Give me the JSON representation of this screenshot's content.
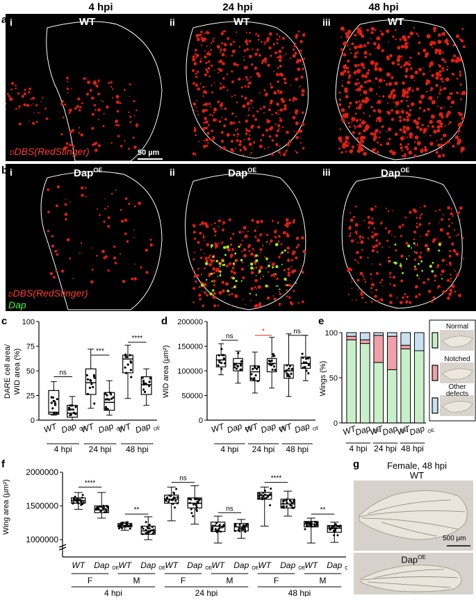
{
  "column_headers": [
    "4 hpi",
    "24 hpi",
    "48 hpi"
  ],
  "panel_letters": {
    "a": "a",
    "b": "b",
    "c": "c",
    "d": "d",
    "e": "e",
    "f": "f",
    "g": "g"
  },
  "roman": [
    "i",
    "ii",
    "iii"
  ],
  "row_a": {
    "genotype": "WT",
    "reporter": "DBS(RedStinger)",
    "reporter_sub": "D",
    "scale": "50 µm"
  },
  "row_b": {
    "genotype": "Dap",
    "genotype_sup": "OE",
    "reporter": "DBS(RedStinger)",
    "reporter_sub": "D",
    "second_label": "Dap"
  },
  "colors": {
    "red": "#ff2a1a",
    "green": "#41ff2a",
    "normal": "#c8f0c8",
    "notched": "#f0a0a8",
    "other": "#c8e0f0"
  },
  "chart_data": [
    {
      "type": "box",
      "panel": "c",
      "ylabel_lines": [
        "DARE cell area/",
        "WID area (%)"
      ],
      "ylim": [
        0,
        100
      ],
      "yticks": [
        "0",
        "25",
        "50",
        "75",
        "100"
      ],
      "categories": [
        "WT",
        "Dap",
        "WT",
        "Dap",
        "WT",
        "Dap"
      ],
      "sups": [
        "",
        "OE",
        "",
        "OE",
        "",
        "OE"
      ],
      "groups": [
        "4 hpi",
        "24 hpi",
        "48 hpi"
      ],
      "boxes": [
        {
          "min": 5,
          "q1": 6,
          "median": 8,
          "q3": 30,
          "max": 39
        },
        {
          "min": 0,
          "q1": 3,
          "median": 7,
          "q3": 15,
          "max": 24
        },
        {
          "min": 12,
          "q1": 26,
          "median": 38,
          "q3": 52,
          "max": 72
        },
        {
          "min": 5,
          "q1": 10,
          "median": 18,
          "q3": 28,
          "max": 40
        },
        {
          "min": 22,
          "q1": 48,
          "median": 62,
          "q3": 66,
          "max": 76
        },
        {
          "min": 15,
          "q1": 26,
          "median": 36,
          "q3": 44,
          "max": 52
        }
      ],
      "significance": [
        {
          "pair": [
            0,
            1
          ],
          "label": "ns",
          "y": 44
        },
        {
          "pair": [
            2,
            3
          ],
          "label": "***",
          "y": 66
        },
        {
          "pair": [
            4,
            5
          ],
          "label": "****",
          "y": 79
        }
      ]
    },
    {
      "type": "box",
      "panel": "d",
      "ylabel": "WID area (µm²)",
      "ylim": [
        0,
        200000
      ],
      "yticks": [
        "0",
        "50000",
        "100000",
        "150000",
        "200000"
      ],
      "categories": [
        "WT",
        "Dap",
        "WT",
        "Dap",
        "WT",
        "Dap"
      ],
      "sups": [
        "",
        "OE",
        "",
        "OE",
        "",
        "OE"
      ],
      "groups": [
        "4 hpi",
        "24 hpi",
        "48 hpi"
      ],
      "boxes": [
        {
          "min": 92000,
          "q1": 108000,
          "median": 122000,
          "q3": 132000,
          "max": 155000
        },
        {
          "min": 75000,
          "q1": 100000,
          "median": 115000,
          "q3": 125000,
          "max": 140000
        },
        {
          "min": 55000,
          "q1": 80000,
          "median": 98000,
          "q3": 110000,
          "max": 138000
        },
        {
          "min": 65000,
          "q1": 98000,
          "median": 115000,
          "q3": 125000,
          "max": 168000
        },
        {
          "min": 48000,
          "q1": 85000,
          "median": 100000,
          "q3": 112000,
          "max": 175000
        },
        {
          "min": 80000,
          "q1": 105000,
          "median": 115000,
          "q3": 128000,
          "max": 172000
        }
      ],
      "significance": [
        {
          "pair": [
            0,
            1
          ],
          "label": "ns",
          "y": 162000,
          "color": "#000"
        },
        {
          "pair": [
            2,
            3
          ],
          "label": "*",
          "y": 172000,
          "color": "#e02020"
        },
        {
          "pair": [
            4,
            5
          ],
          "label": "ns",
          "y": 172000,
          "color": "#000"
        }
      ]
    },
    {
      "type": "stacked-bar",
      "panel": "e",
      "ylabel": "Wings (%)",
      "ylim": [
        0,
        100
      ],
      "yticks": [
        "0",
        "50",
        "100"
      ],
      "categories": [
        "WT",
        "Dap",
        "WT",
        "Dap",
        "WT",
        "Dap"
      ],
      "sups": [
        "",
        "OE",
        "",
        "OE",
        "",
        "OE"
      ],
      "groups": [
        "4 hpi",
        "24 hpi",
        "48 hpi"
      ],
      "series": [
        {
          "name": "Normal",
          "values": [
            92,
            88,
            67,
            59,
            82,
            80
          ]
        },
        {
          "name": "Notched",
          "values": [
            4,
            4,
            30,
            37,
            4,
            0
          ]
        },
        {
          "name": "Other defects",
          "values": [
            4,
            8,
            3,
            4,
            14,
            20
          ]
        }
      ],
      "legend": [
        "Normal",
        "Notched",
        "Other defects"
      ]
    },
    {
      "type": "box",
      "panel": "f",
      "ylabel": "Wing area (µm²)",
      "ylim": [
        850000,
        2000000
      ],
      "yticks": [
        "1000000",
        "1500000",
        "2000000"
      ],
      "categories": [
        "WT",
        "Dap",
        "WT",
        "Dap",
        "WT",
        "Dap",
        "WT",
        "Dap",
        "WT",
        "Dap",
        "WT",
        "Dap"
      ],
      "sups": [
        "",
        "OE",
        "",
        "OE",
        "",
        "OE",
        "",
        "OE",
        "",
        "OE",
        "",
        "OE"
      ],
      "sex": [
        "F",
        "M",
        "F",
        "M",
        "F",
        "M"
      ],
      "groups": [
        "4 hpi",
        "24 hpi",
        "48 hpi"
      ],
      "boxes": [
        {
          "min": 1450000,
          "q1": 1540000,
          "median": 1580000,
          "q3": 1620000,
          "max": 1700000
        },
        {
          "min": 1320000,
          "q1": 1400000,
          "median": 1440000,
          "q3": 1500000,
          "max": 1700000
        },
        {
          "min": 1140000,
          "q1": 1190000,
          "median": 1210000,
          "q3": 1240000,
          "max": 1260000
        },
        {
          "min": 1000000,
          "q1": 1080000,
          "median": 1130000,
          "q3": 1200000,
          "max": 1340000
        },
        {
          "min": 1280000,
          "q1": 1540000,
          "median": 1600000,
          "q3": 1660000,
          "max": 1780000
        },
        {
          "min": 1230000,
          "q1": 1470000,
          "median": 1540000,
          "q3": 1620000,
          "max": 1800000
        },
        {
          "min": 950000,
          "q1": 1120000,
          "median": 1200000,
          "q3": 1260000,
          "max": 1350000
        },
        {
          "min": 1020000,
          "q1": 1130000,
          "median": 1190000,
          "q3": 1240000,
          "max": 1300000
        },
        {
          "min": 1200000,
          "q1": 1600000,
          "median": 1660000,
          "q3": 1700000,
          "max": 1780000
        },
        {
          "min": 1350000,
          "q1": 1470000,
          "median": 1530000,
          "q3": 1600000,
          "max": 1720000
        },
        {
          "min": 950000,
          "q1": 1190000,
          "median": 1230000,
          "q3": 1270000,
          "max": 1320000
        },
        {
          "min": 960000,
          "q1": 1110000,
          "median": 1170000,
          "q3": 1210000,
          "max": 1260000
        }
      ],
      "significance": [
        {
          "pair": [
            0,
            1
          ],
          "label": "****",
          "y": 1780000
        },
        {
          "pair": [
            2,
            3
          ],
          "label": "**",
          "y": 1380000
        },
        {
          "pair": [
            4,
            5
          ],
          "label": "ns",
          "y": 1850000
        },
        {
          "pair": [
            6,
            7
          ],
          "label": "ns",
          "y": 1400000
        },
        {
          "pair": [
            8,
            9
          ],
          "label": "****",
          "y": 1850000
        },
        {
          "pair": [
            10,
            11
          ],
          "label": "**",
          "y": 1380000
        }
      ]
    }
  ],
  "panel_g": {
    "title": "Female, 48 hpi",
    "top": "WT",
    "bottom": "Dap",
    "bottom_sup": "OE",
    "scale": "500 µm"
  }
}
